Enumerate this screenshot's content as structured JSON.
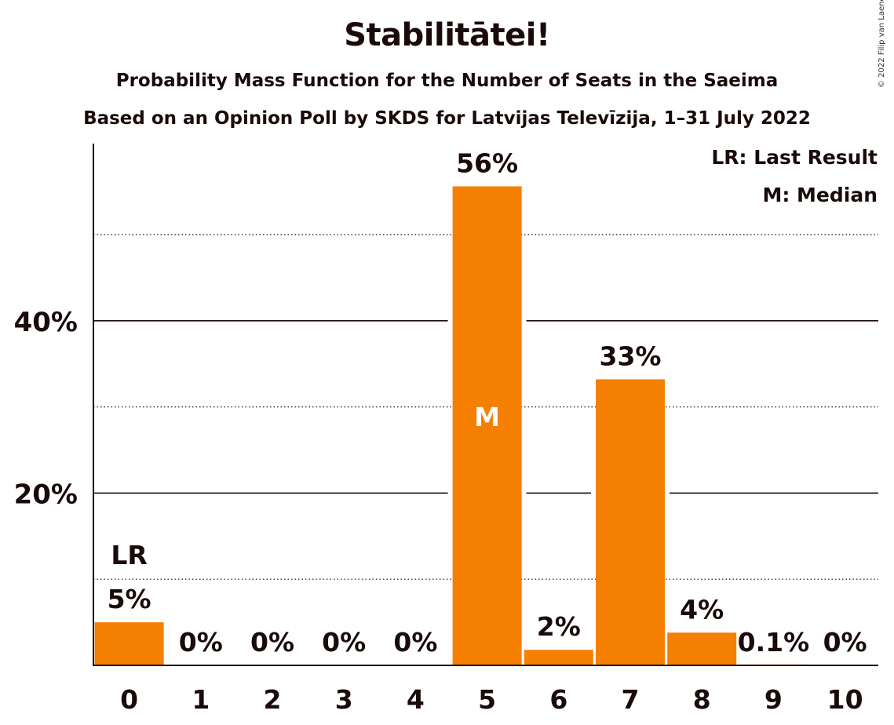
{
  "copyright": "© 2022 Filip van Laenen",
  "legend": {
    "last_result": "LR: Last Result",
    "median": "M: Median"
  },
  "chart_data": {
    "type": "bar",
    "title": "Stabilitātei!",
    "subtitle": "Probability Mass Function for the Number of Seats in the Saeima",
    "subtitle2": "Based on an Opinion Poll by SKDS for Latvijas Televīzija, 1–31 July 2022",
    "categories": [
      "0",
      "1",
      "2",
      "3",
      "4",
      "5",
      "6",
      "7",
      "8",
      "9",
      "10"
    ],
    "values": [
      5.0,
      0,
      0,
      0,
      0,
      55.6,
      1.8,
      33.2,
      3.8,
      0.1,
      0
    ],
    "value_labels": [
      "5%",
      "0%",
      "0%",
      "0%",
      "0%",
      "56%",
      "2%",
      "33%",
      "4%",
      "0.1%",
      "0%"
    ],
    "ylim": [
      0,
      60
    ],
    "yticks": [
      20,
      40
    ],
    "ytick_labels": [
      "20%",
      "40%"
    ],
    "minor_gridlines": [
      10,
      30,
      50
    ],
    "last_result_index": 0,
    "last_result_marker": "LR",
    "median_index": 5,
    "median_marker": "M",
    "bar_color": "#f57f00",
    "grid": true,
    "legend_position": "top-right"
  }
}
